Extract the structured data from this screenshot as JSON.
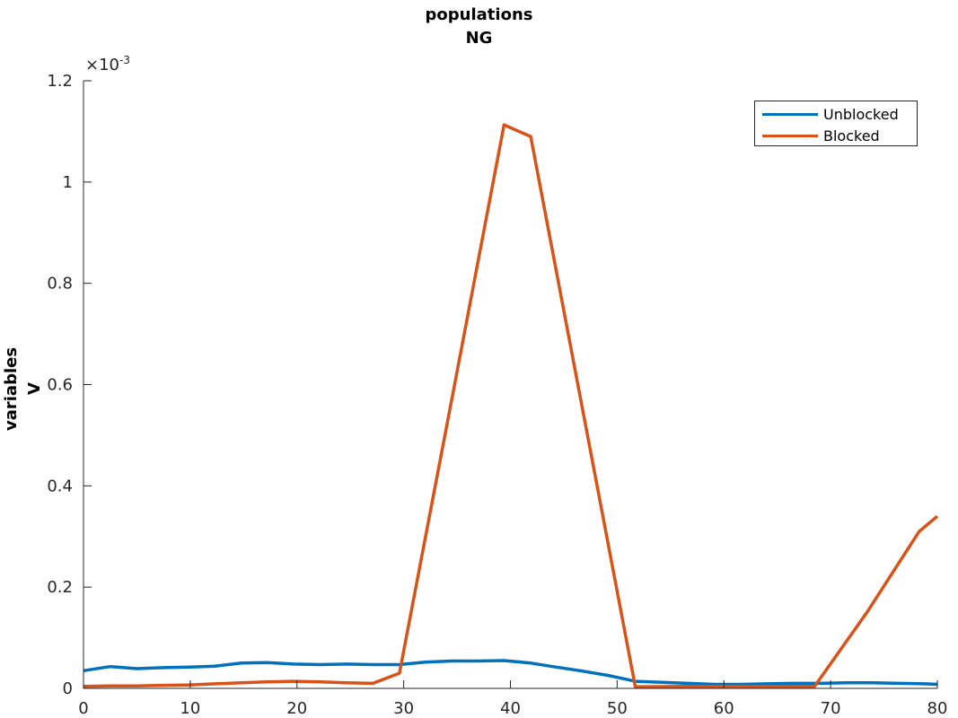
{
  "chart_data": {
    "type": "line",
    "title": [
      "populations",
      "NG"
    ],
    "ylabel": [
      "variables",
      "V"
    ],
    "xlabel": "",
    "y_exponent_label": "×10",
    "y_exponent_power": "-3",
    "xlim": [
      0,
      80
    ],
    "ylim": [
      0,
      0.0012
    ],
    "xticks": [
      0,
      10,
      20,
      30,
      40,
      50,
      60,
      70,
      80
    ],
    "xtick_labels": [
      "0",
      "10",
      "20",
      "30",
      "40",
      "50",
      "60",
      "70",
      "80"
    ],
    "yticks": [
      0,
      0.0002,
      0.0004,
      0.0006,
      0.0008,
      0.001,
      0.0012
    ],
    "ytick_labels": [
      "0",
      "0.2",
      "0.4",
      "0.6",
      "0.8",
      "1",
      "1.2"
    ],
    "grid": false,
    "legend_position": "top-right",
    "series": [
      {
        "name": "Unblocked",
        "color": "#0072BD",
        "x": [
          0,
          2.5,
          5,
          7.5,
          10,
          12.3,
          14.8,
          17.2,
          19.7,
          22.2,
          24.6,
          27.1,
          29.6,
          32,
          34.5,
          37,
          39.4,
          41.9,
          44.3,
          46.8,
          49.3,
          51.7,
          54.2,
          56.7,
          59.1,
          61.6,
          64,
          66.5,
          69,
          71.4,
          73.9,
          76.4,
          78.8,
          80
        ],
        "values": [
          3.5e-05,
          4.3e-05,
          3.9e-05,
          4.1e-05,
          4.2e-05,
          4.4e-05,
          5e-05,
          5.1e-05,
          4.8e-05,
          4.7e-05,
          4.8e-05,
          4.7e-05,
          4.7e-05,
          5.2e-05,
          5.4e-05,
          5.4e-05,
          5.5e-05,
          5e-05,
          4.2e-05,
          3.4e-05,
          2.5e-05,
          1.4e-05,
          1.2e-05,
          1e-05,
          8e-06,
          8e-06,
          9e-06,
          1e-05,
          1e-05,
          1.1e-05,
          1.1e-05,
          1e-05,
          9e-06,
          8e-06
        ]
      },
      {
        "name": "Blocked",
        "color": "#D95319",
        "x": [
          0,
          2.5,
          5,
          7.5,
          10,
          12.3,
          14.8,
          17.2,
          19.7,
          22.2,
          24.6,
          27.1,
          29.6,
          34.5,
          39.4,
          41.9,
          51.7,
          56.7,
          61.6,
          66.5,
          68.5,
          73.4,
          78.3,
          80
        ],
        "values": [
          4e-06,
          5e-06,
          5e-06,
          6e-06,
          7e-06,
          9e-06,
          1.1e-05,
          1.3e-05,
          1.4e-05,
          1.3e-05,
          1.1e-05,
          1e-05,
          3e-05,
          0.00057,
          0.001113,
          0.00109,
          3e-06,
          4e-06,
          4e-06,
          4e-06,
          4e-06,
          0.00015,
          0.00031,
          0.00034
        ]
      }
    ]
  }
}
